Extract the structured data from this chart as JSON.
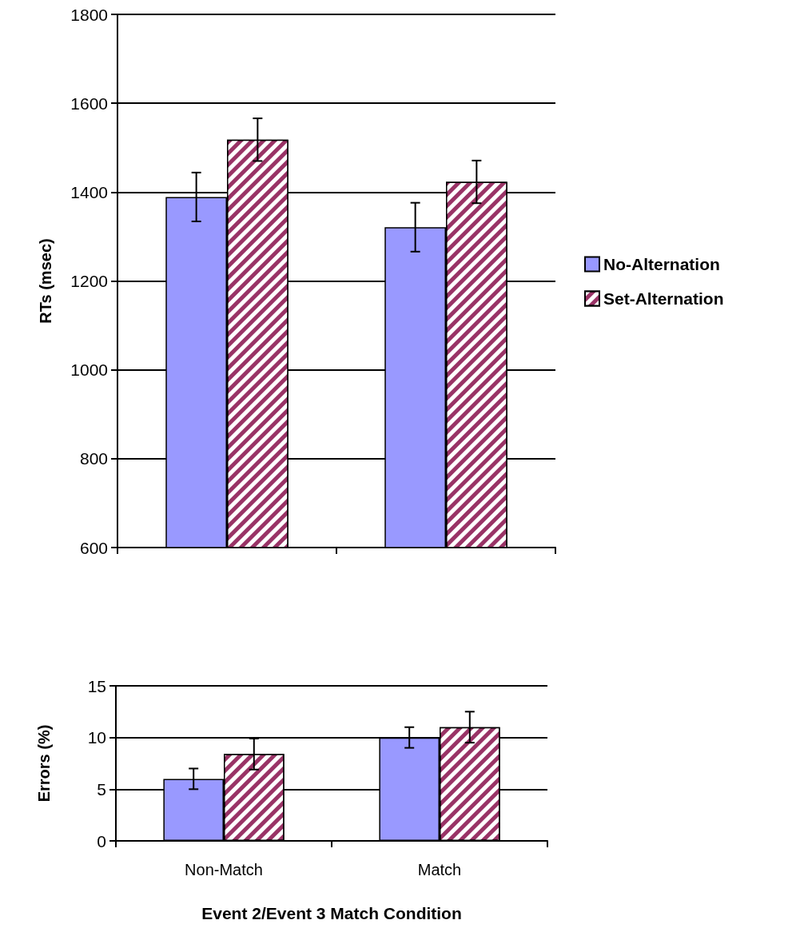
{
  "chart_data": [
    {
      "type": "bar",
      "ylabel": "RTs (msec)",
      "categories": [
        null,
        null
      ],
      "ylim": [
        600,
        1800
      ],
      "yticks": [
        600,
        800,
        1000,
        1200,
        1400,
        1600,
        1800
      ],
      "grid": "y",
      "legend": "right",
      "tick_labels": "y",
      "series": [
        {
          "name": "No-Alternation",
          "color": "#9999ff",
          "values": [
            1389,
            1321
          ],
          "errors": [
            55,
            55
          ]
        },
        {
          "name": "Set-Alternation",
          "color": "#993366",
          "values": [
            1518,
            1423
          ],
          "errors": [
            48,
            48
          ]
        }
      ]
    },
    {
      "type": "bar",
      "ylabel": "Errors (%)",
      "xlabel": "Event 2/Event 3 Match Condition",
      "categories": [
        "Non-Match",
        "Match"
      ],
      "ylim": [
        0,
        15
      ],
      "yticks": [
        0,
        5,
        10,
        15
      ],
      "grid": "y",
      "series": [
        {
          "color": "#9999ff",
          "values": [
            6,
            10
          ],
          "errors": [
            1,
            1
          ]
        },
        {
          "color": "#993366",
          "values": [
            8.4,
            11
          ],
          "errors": [
            1.5,
            1.5
          ]
        }
      ]
    }
  ]
}
